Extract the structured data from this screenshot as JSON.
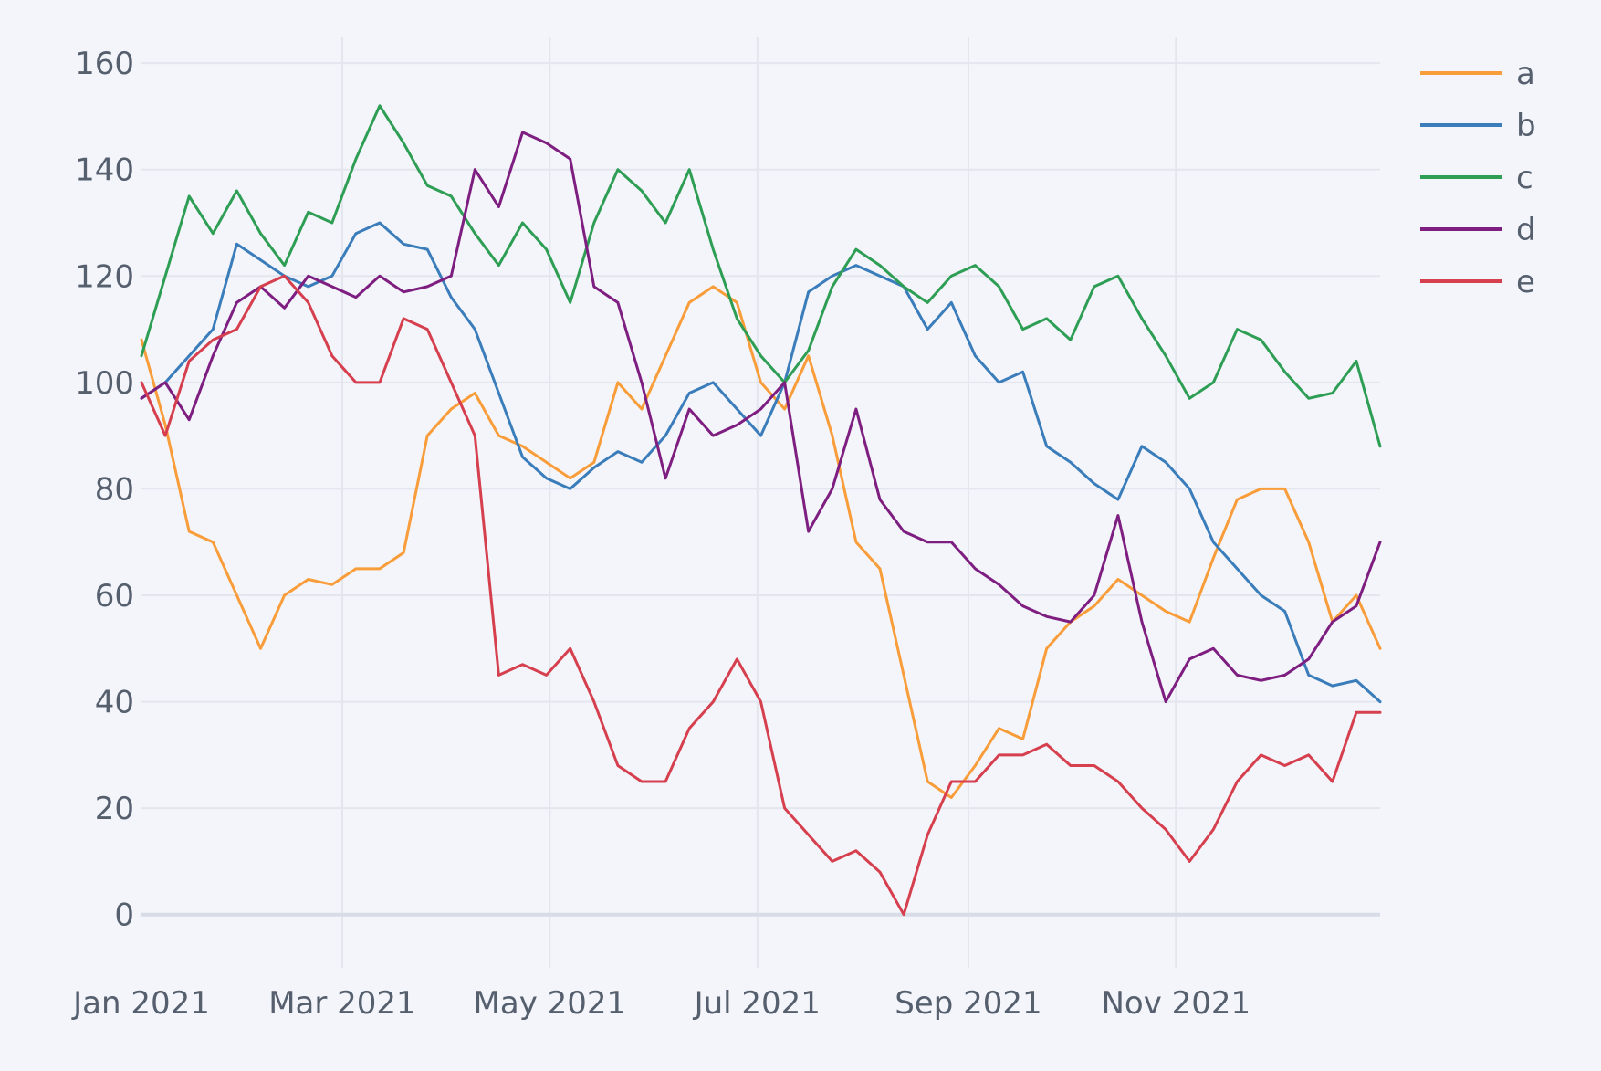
{
  "chart_data": {
    "type": "line",
    "title": "",
    "xlabel": "",
    "ylabel": "",
    "x_range": [
      "2021-01-01",
      "2021-12-31"
    ],
    "ylim": [
      -10,
      165
    ],
    "x_ticks": [
      {
        "date": "2021-01-01",
        "label": "Jan 2021"
      },
      {
        "date": "2021-03-01",
        "label": "Mar 2021"
      },
      {
        "date": "2021-05-01",
        "label": "May 2021"
      },
      {
        "date": "2021-07-01",
        "label": "Jul 2021"
      },
      {
        "date": "2021-09-01",
        "label": "Sep 2021"
      },
      {
        "date": "2021-11-01",
        "label": "Nov 2021"
      }
    ],
    "y_ticks": [
      0,
      20,
      40,
      60,
      80,
      100,
      120,
      140,
      160
    ],
    "grid": true,
    "legend_position": "top-right",
    "x_dates_weekly": [
      "2021-01-01",
      "2021-01-08",
      "2021-01-15",
      "2021-01-22",
      "2021-01-29",
      "2021-02-05",
      "2021-02-12",
      "2021-02-19",
      "2021-02-26",
      "2021-03-05",
      "2021-03-12",
      "2021-03-19",
      "2021-03-26",
      "2021-04-02",
      "2021-04-09",
      "2021-04-16",
      "2021-04-23",
      "2021-04-30",
      "2021-05-07",
      "2021-05-14",
      "2021-05-21",
      "2021-05-28",
      "2021-06-04",
      "2021-06-11",
      "2021-06-18",
      "2021-06-25",
      "2021-07-02",
      "2021-07-09",
      "2021-07-16",
      "2021-07-23",
      "2021-07-30",
      "2021-08-06",
      "2021-08-13",
      "2021-08-20",
      "2021-08-27",
      "2021-09-03",
      "2021-09-10",
      "2021-09-17",
      "2021-09-24",
      "2021-10-01",
      "2021-10-08",
      "2021-10-15",
      "2021-10-22",
      "2021-10-29",
      "2021-11-05",
      "2021-11-12",
      "2021-11-19",
      "2021-11-26",
      "2021-12-03",
      "2021-12-10",
      "2021-12-17",
      "2021-12-24",
      "2021-12-31"
    ],
    "series": [
      {
        "name": "a",
        "color": "#f99d3a",
        "values": [
          108,
          92,
          72,
          70,
          60,
          50,
          60,
          63,
          62,
          65,
          65,
          68,
          90,
          95,
          98,
          90,
          88,
          85,
          82,
          85,
          100,
          95,
          105,
          115,
          118,
          115,
          100,
          95,
          105,
          90,
          70,
          65,
          45,
          25,
          22,
          28,
          35,
          33,
          50,
          55,
          58,
          63,
          60,
          57,
          55,
          67,
          78,
          80,
          80,
          70,
          55,
          60,
          50
        ]
      },
      {
        "name": "b",
        "color": "#3a7dba",
        "values": [
          97,
          100,
          105,
          110,
          126,
          123,
          120,
          118,
          120,
          128,
          130,
          126,
          125,
          116,
          110,
          98,
          86,
          82,
          80,
          84,
          87,
          85,
          90,
          98,
          100,
          95,
          90,
          100,
          117,
          120,
          122,
          120,
          118,
          110,
          115,
          105,
          100,
          102,
          88,
          85,
          81,
          78,
          88,
          85,
          80,
          70,
          65,
          60,
          57,
          45,
          43,
          44,
          40
        ]
      },
      {
        "name": "c",
        "color": "#2f9e55",
        "values": [
          105,
          120,
          135,
          128,
          136,
          128,
          122,
          132,
          130,
          142,
          152,
          145,
          137,
          135,
          128,
          122,
          130,
          125,
          115,
          130,
          140,
          136,
          130,
          140,
          125,
          112,
          105,
          100,
          106,
          118,
          125,
          122,
          118,
          115,
          120,
          122,
          118,
          110,
          112,
          108,
          118,
          120,
          112,
          105,
          97,
          100,
          110,
          108,
          102,
          97,
          98,
          104,
          88
        ]
      },
      {
        "name": "d",
        "color": "#7e1e80",
        "values": [
          97,
          100,
          93,
          105,
          115,
          118,
          114,
          120,
          118,
          116,
          120,
          117,
          118,
          120,
          140,
          133,
          147,
          145,
          142,
          118,
          115,
          100,
          82,
          95,
          90,
          92,
          95,
          100,
          72,
          80,
          95,
          78,
          72,
          70,
          70,
          65,
          62,
          58,
          56,
          55,
          60,
          75,
          55,
          40,
          48,
          50,
          45,
          44,
          45,
          48,
          55,
          58,
          70
        ]
      },
      {
        "name": "e",
        "color": "#d63f4e",
        "values": [
          100,
          90,
          104,
          108,
          110,
          118,
          120,
          115,
          105,
          100,
          100,
          112,
          110,
          100,
          90,
          45,
          47,
          45,
          50,
          40,
          28,
          25,
          25,
          35,
          40,
          48,
          40,
          20,
          15,
          10,
          12,
          8,
          0,
          15,
          25,
          25,
          30,
          30,
          32,
          28,
          28,
          25,
          20,
          16,
          10,
          16,
          25,
          30,
          28,
          30,
          25,
          38,
          38
        ]
      }
    ]
  }
}
